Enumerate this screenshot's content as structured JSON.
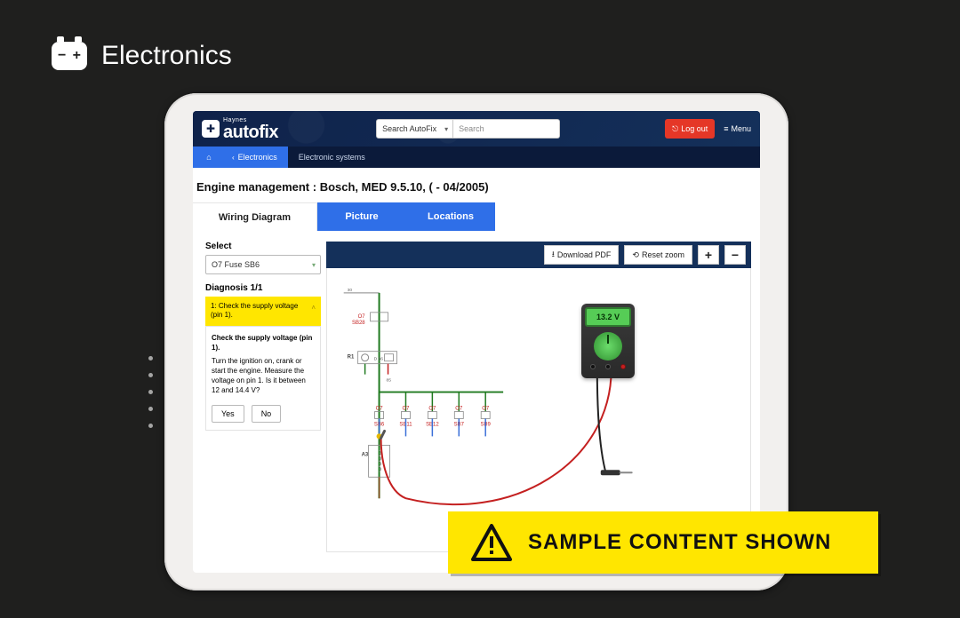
{
  "heading": {
    "icon": "battery-icon",
    "text": "Electronics"
  },
  "header": {
    "logo": {
      "brand_small": "Haynes",
      "brand_big": "autofix"
    },
    "search_scope": "Search AutoFix",
    "search_placeholder": "Search",
    "logout_label": "Log out",
    "menu_label": "Menu"
  },
  "breadcrumb": {
    "back_label": "Electronics",
    "current_label": "Electronic systems"
  },
  "page_title": "Engine management :  Bosch, MED 9.5.10, ( - 04/2005)",
  "tabs": [
    {
      "label": "Wiring Diagram",
      "active": true
    },
    {
      "label": "Picture",
      "active": false
    },
    {
      "label": "Locations",
      "active": false
    }
  ],
  "side": {
    "select_label": "Select",
    "select_value": "O7  Fuse  SB6",
    "diagnosis_label": "Diagnosis 1/1",
    "step_header": "1: Check the supply voltage (pin 1).",
    "step_title": "Check the supply voltage (pin 1).",
    "step_text": "Turn the ignition on, crank or start the engine. Measure the voltage on pin 1. Is it between 12 and 14.4 V?",
    "yes_label": "Yes",
    "no_label": "No"
  },
  "toolbar": {
    "download_label": "Download PDF",
    "reset_label": "Reset zoom",
    "zoom_in": "+",
    "zoom_out": "−"
  },
  "meter": {
    "reading": "13.2 V"
  },
  "diagram": {
    "colors": {
      "wire_green": "#1f7a1f",
      "wire_red": "#c42020",
      "wire_blue": "#3a6fd8",
      "wire_brown": "#8b4a1f",
      "wire_black": "#222222",
      "node_fill": "#ffffff",
      "grid": "#888888"
    },
    "ref_top": "30",
    "r1_label": "R1",
    "r1_sub": "D 86",
    "o7_top": {
      "code": "O7",
      "part": "SB28"
    },
    "branches": [
      {
        "code": "O7",
        "part": "SB6"
      },
      {
        "code": "O7",
        "part": "SB11"
      },
      {
        "code": "O7",
        "part": "SB12"
      },
      {
        "code": "O7",
        "part": "SB7"
      },
      {
        "code": "O7",
        "part": "SB9"
      }
    ],
    "a3_label": "A3",
    "sub_label": "85"
  },
  "banner": {
    "text": "SAMPLE CONTENT SHOWN"
  },
  "palette": {
    "bg": "#1f1f1e",
    "header": "#0f224a",
    "crumb_bg": "#0b1a3a",
    "accent_blue": "#2f6fe8",
    "accent_red": "#e53727",
    "accent_yellow": "#ffe600"
  }
}
